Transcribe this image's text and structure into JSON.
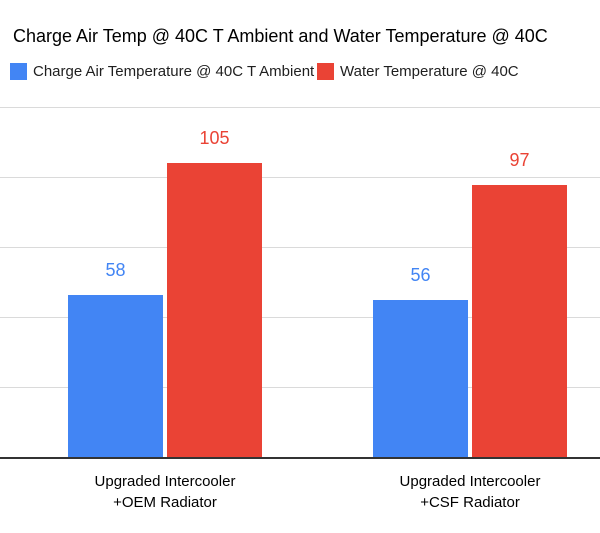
{
  "chart_data": {
    "type": "bar",
    "title": "Charge Air Temp @ 40C T Ambient and Water Temperature @ 40C",
    "categories": [
      "Upgraded Intercooler\n+OEM Radiator",
      "Upgraded Intercooler\n+CSF Radiator"
    ],
    "series": [
      {
        "name": "Charge Air Temperature @ 40C T Ambient",
        "color": "#4285F4",
        "values": [
          58,
          56
        ]
      },
      {
        "name": "Water Temperature @ 40C",
        "color": "#EA4335",
        "values": [
          105,
          97
        ]
      }
    ],
    "ylim": [
      0,
      125
    ],
    "gridline_step": 25,
    "grid": true,
    "y_axis_labels_visible": false,
    "legend_position": "top",
    "data_labels": true,
    "colors": {
      "gridline": "#dadada",
      "axis_line": "#333333",
      "title_text": "#000000",
      "category_text": "#000000"
    }
  }
}
